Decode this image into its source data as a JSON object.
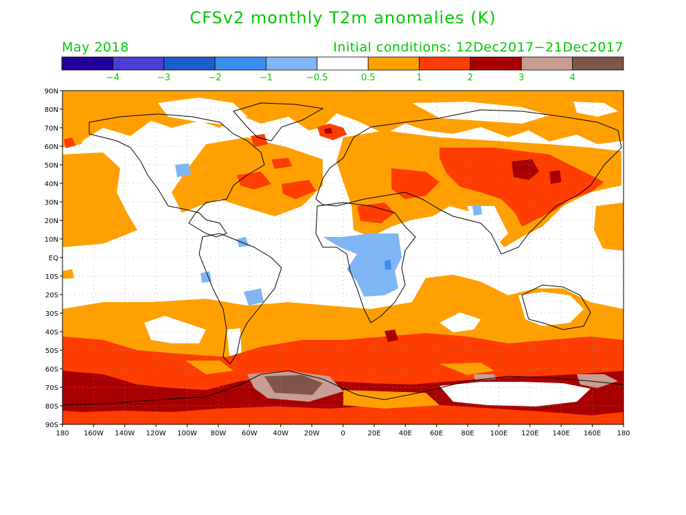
{
  "title": "CFSv2 monthly T2m anomalies (K)",
  "valid_month": "May 2018",
  "initial_conditions": "Initial conditions: 12Dec2017−21Dec2017",
  "colorbar": {
    "colors": [
      "#22009b",
      "#4c3dd3",
      "#1c5fcc",
      "#3a8ef0",
      "#7fb6f5",
      "#ffffff",
      "#ffa000",
      "#ff3d00",
      "#a80000",
      "#c99e92",
      "#7e5549"
    ],
    "labels": [
      "−4",
      "−3",
      "−2",
      "−1",
      "−0.5",
      "0.5",
      "1",
      "2",
      "3",
      "4"
    ]
  },
  "lat_labels": [
    "90N",
    "80N",
    "70N",
    "60N",
    "50N",
    "40N",
    "30N",
    "20N",
    "10N",
    "EQ",
    "10S",
    "20S",
    "30S",
    "40S",
    "50S",
    "60S",
    "70S",
    "80S",
    "90S"
  ],
  "lon_labels": [
    "180",
    "160W",
    "140W",
    "120W",
    "100W",
    "80W",
    "60W",
    "40W",
    "20W",
    "0",
    "20E",
    "40E",
    "60E",
    "80E",
    "100E",
    "120E",
    "140E",
    "160E",
    "180"
  ],
  "colors": {
    "title": "#00c800",
    "warm1": "#ffa000",
    "warm2": "#ff3d00",
    "warm3": "#a80000",
    "warm4": "#c99e92",
    "warm5": "#7e5549",
    "cool1": "#7fb6f5",
    "cool2": "#3a8ef0"
  }
}
